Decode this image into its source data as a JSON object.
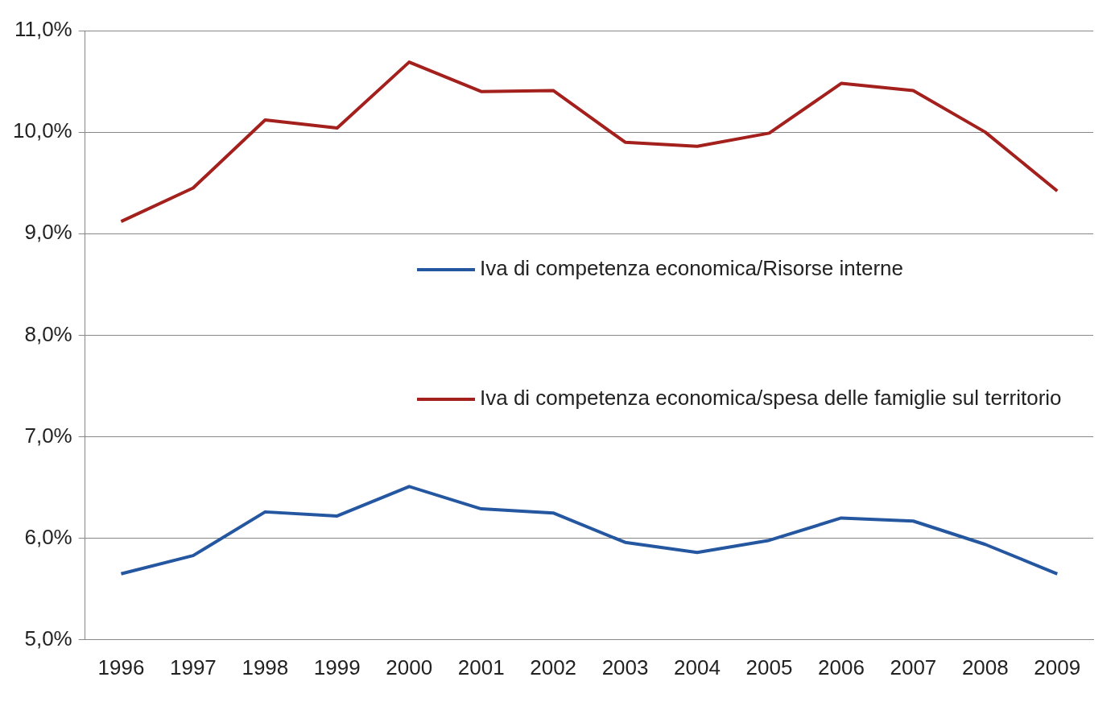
{
  "chart_data": {
    "type": "line",
    "categories": [
      "1996",
      "1997",
      "1998",
      "1999",
      "2000",
      "2001",
      "2002",
      "2003",
      "2004",
      "2005",
      "2006",
      "2007",
      "2008",
      "2009"
    ],
    "series": [
      {
        "name": "Iva di competenza economica/Risorse interne",
        "color": "#2457a0",
        "values": [
          5.65,
          5.83,
          6.26,
          6.22,
          6.51,
          6.29,
          6.25,
          5.96,
          5.86,
          5.98,
          6.2,
          6.17,
          5.94,
          5.65
        ]
      },
      {
        "name": "Iva di competenza economica/spesa delle famiglie sul territorio",
        "color": "#a3201d",
        "values": [
          9.12,
          9.45,
          10.12,
          10.04,
          10.69,
          10.4,
          10.41,
          9.9,
          9.86,
          9.99,
          10.48,
          10.41,
          10.0,
          9.42
        ]
      }
    ],
    "ylim": [
      5,
      11
    ],
    "yticks": [
      {
        "value": 5,
        "label": "5,0%"
      },
      {
        "value": 6,
        "label": "6,0%"
      },
      {
        "value": 7,
        "label": "7,0%"
      },
      {
        "value": 8,
        "label": "8,0%"
      },
      {
        "value": 9,
        "label": "9,0%"
      },
      {
        "value": 10,
        "label": "10,0%"
      },
      {
        "value": 11,
        "label": "11,0%"
      }
    ],
    "grid": "y",
    "legend": "right",
    "marker": "none",
    "line_style": "solid"
  }
}
